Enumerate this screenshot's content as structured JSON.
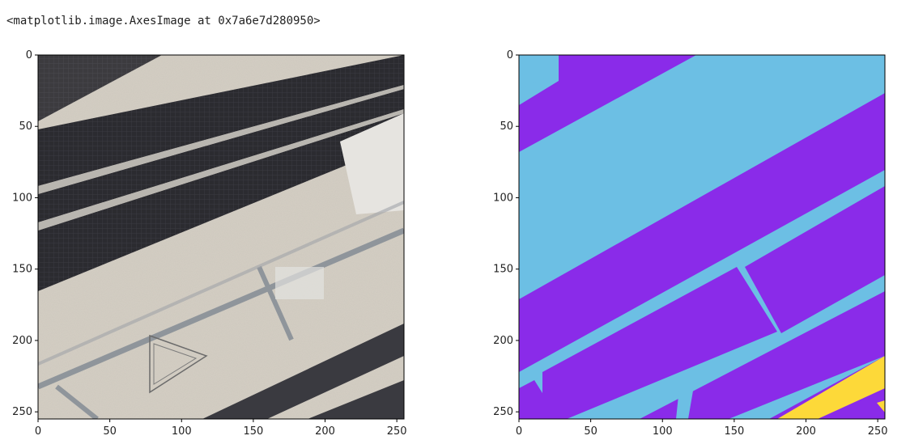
{
  "output_text": "<matplotlib.image.AxesImage at 0x7a6e7d280950>",
  "chart_data": [
    {
      "type": "image",
      "title": "",
      "xlabel": "",
      "ylabel": "",
      "xlim": [
        0,
        255
      ],
      "ylim": [
        255,
        0
      ],
      "xticks": [
        "0",
        "50",
        "100",
        "150",
        "200",
        "250"
      ],
      "yticks": [
        "0",
        "50",
        "100",
        "150",
        "200",
        "250"
      ],
      "grid": false
    },
    {
      "type": "image",
      "title": "",
      "xlabel": "",
      "ylabel": "",
      "xlim": [
        0,
        255
      ],
      "ylim": [
        255,
        0
      ],
      "xticks": [
        "0",
        "50",
        "100",
        "150",
        "200",
        "250"
      ],
      "yticks": [
        "0",
        "50",
        "100",
        "150",
        "200",
        "250"
      ],
      "grid": false,
      "palette": {
        "purple": "#8a2be9",
        "light_blue": "#6cbfe4",
        "yellow": "#fdd939"
      }
    }
  ],
  "colors": {
    "sand": "#d4cec3",
    "panel_dark": "#2b2b30",
    "road": "#8f959b"
  }
}
